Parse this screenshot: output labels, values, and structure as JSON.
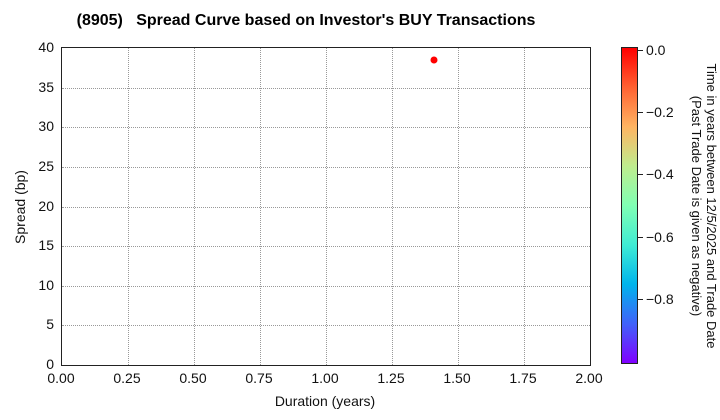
{
  "chart_data": {
    "type": "scatter",
    "title": "(8905)   Spread Curve based on Investor's BUY Transactions",
    "xlabel": "Duration (years)",
    "ylabel": "Spread (bp)",
    "xlim": [
      0.0,
      2.0
    ],
    "ylim": [
      0,
      40
    ],
    "x_ticks": [
      0.0,
      0.25,
      0.5,
      0.75,
      1.0,
      1.25,
      1.5,
      1.75,
      2.0
    ],
    "x_tick_labels": [
      "0.00",
      "0.25",
      "0.50",
      "0.75",
      "1.00",
      "1.25",
      "1.50",
      "1.75",
      "2.00"
    ],
    "y_ticks": [
      0,
      5,
      10,
      15,
      20,
      25,
      30,
      35,
      40
    ],
    "y_tick_labels": [
      "0",
      "5",
      "10",
      "15",
      "20",
      "25",
      "30",
      "35",
      "40"
    ],
    "grid": true,
    "grid_style": "dotted",
    "legend_position": "none",
    "points": [
      {
        "x": 1.41,
        "y": 38.5,
        "time_value": 0.0,
        "color": "#ff0000"
      }
    ],
    "colorbar": {
      "label_line1": "Time in years between 12/5/2025 and Trade Date",
      "label_line2": "(Past Trade Date is given as negative)",
      "tick_labels": [
        "0.0",
        "−0.2",
        "−0.4",
        "−0.6",
        "−0.8"
      ],
      "tick_values": [
        0.0,
        -0.2,
        -0.4,
        -0.6,
        -0.8
      ],
      "range": [
        0.0,
        -1.0
      ],
      "colormap": "rainbow (reversed)",
      "gradient_stops": [
        "#ff0000",
        "#ff6232",
        "#ffb462",
        "#bfec8e",
        "#80ffb4",
        "#40ecd4",
        "#00b4ec",
        "#4062fa",
        "#8000ff"
      ]
    }
  }
}
